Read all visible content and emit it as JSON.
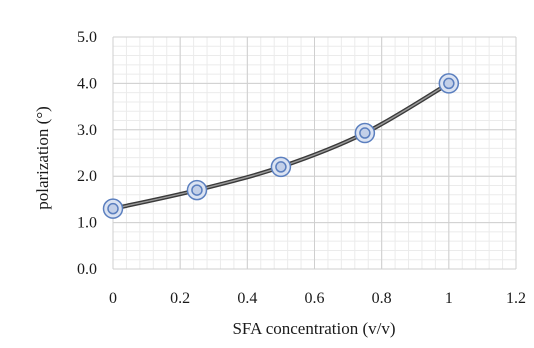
{
  "chart_data": {
    "type": "line",
    "title": "",
    "xlabel": "SFA concentration (v/v)",
    "ylabel": "polarization (°)",
    "xlim": [
      0,
      1.2
    ],
    "ylim": [
      0,
      5.0
    ],
    "x_ticks": [
      "0",
      "0.2",
      "0.4",
      "0.6",
      "0.8",
      "1",
      "1.2"
    ],
    "y_ticks": [
      "0.0",
      "1.0",
      "2.0",
      "3.0",
      "4.0",
      "5.0"
    ],
    "grid": true,
    "legend": "none",
    "series": [
      {
        "x": [
          0,
          0.25,
          0.5,
          0.75,
          1.0
        ],
        "y": [
          1.3,
          1.7,
          2.2,
          2.93,
          4.0
        ],
        "smooth": true,
        "line_color": "#555555",
        "marker": "double-circle",
        "marker_color": "#5b7fbf"
      }
    ]
  }
}
